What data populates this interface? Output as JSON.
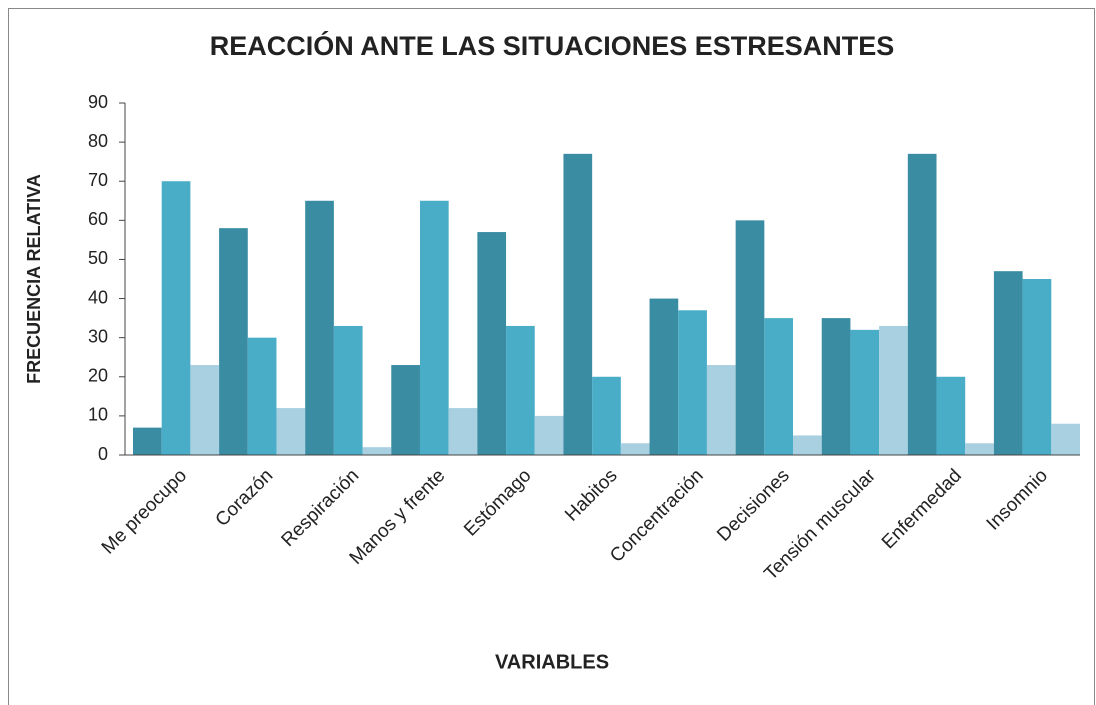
{
  "chart_data": {
    "type": "bar",
    "title": "REACCIÓN ANTE LAS SITUACIONES ESTRESANTES",
    "x_label": "VARIABLES",
    "y_label": "FRECUENCIA RELATIVA",
    "categories": [
      "Me preocupo",
      "Corazón",
      "Respiración",
      "Manos y frente",
      "Estómago",
      "Habitos",
      "Concentración",
      "Decisiones",
      "Tensión muscular",
      "Enfermedad",
      "Insomnio"
    ],
    "series": [
      {
        "color": "#3a8ca3",
        "values": [
          7,
          58,
          65,
          23,
          57,
          77,
          40,
          60,
          35,
          77,
          47
        ]
      },
      {
        "color": "#4aadc8",
        "values": [
          70,
          30,
          33,
          65,
          33,
          20,
          37,
          35,
          32,
          20,
          45
        ]
      },
      {
        "color": "#a8d0e0",
        "values": [
          23,
          12,
          2,
          12,
          10,
          3,
          23,
          5,
          33,
          3,
          8
        ]
      }
    ],
    "ylim": [
      0,
      90
    ],
    "yticks": [
      0,
      10,
      20,
      30,
      40,
      50,
      60,
      70,
      80,
      90
    ],
    "grid": false
  }
}
